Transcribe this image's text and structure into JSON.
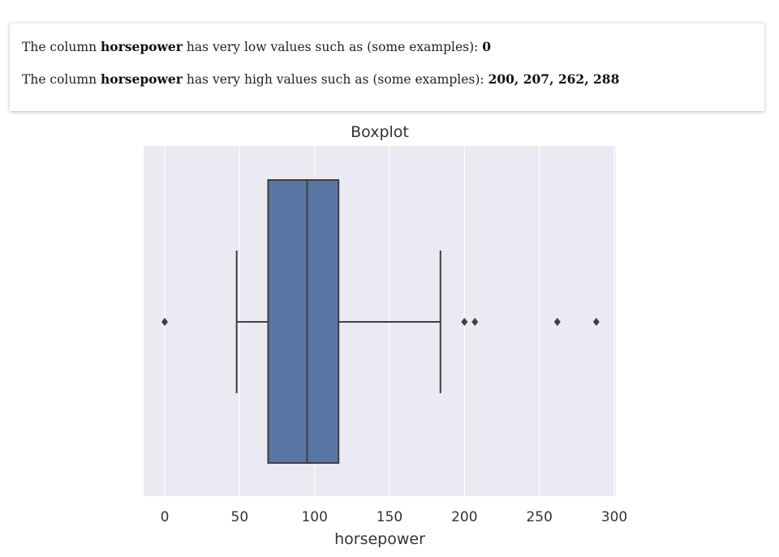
{
  "info": {
    "low_prefix": "The column ",
    "low_column": "horsepower",
    "low_middle": " has very low values such as (some examples): ",
    "low_values": "0",
    "high_prefix": "The column ",
    "high_column": "horsepower",
    "high_middle": " has very high values such as (some examples): ",
    "high_values": "200, 207, 262, 288"
  },
  "chart_data": {
    "type": "boxplot",
    "title": "Boxplot",
    "xlabel": "horsepower",
    "ylabel": "",
    "orientation": "horizontal",
    "xlim": [
      -14,
      300
    ],
    "xticks": [
      0,
      50,
      100,
      150,
      200,
      250,
      300
    ],
    "grid": true,
    "box": {
      "whisker_low": 48,
      "q1": 69,
      "median": 95,
      "q3": 116,
      "whisker_high": 184,
      "outliers": [
        0,
        200,
        207,
        262,
        288
      ]
    },
    "colors": {
      "box_fill": "#5876a5",
      "line": "#3f3f3f",
      "plot_bg": "#eaeaf2",
      "grid": "#ffffff",
      "text": "#333333"
    }
  }
}
